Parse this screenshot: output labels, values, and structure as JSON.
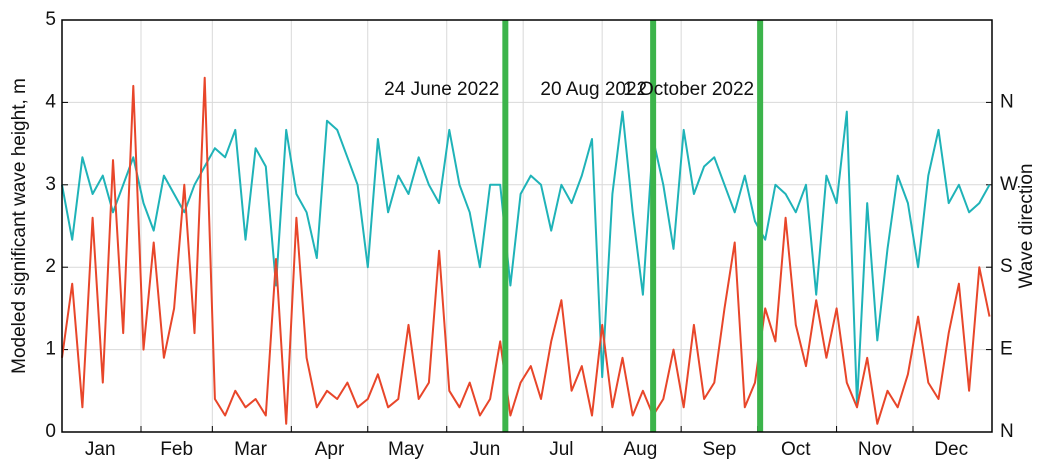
{
  "chart_data": {
    "type": "line",
    "ylabel": "Modeled significant wave height, m",
    "y2label": "Wave direction",
    "xlim": [
      1,
      366
    ],
    "ylim": [
      0,
      5
    ],
    "yticks": [
      0,
      1,
      2,
      3,
      4,
      5
    ],
    "y2lim": [
      0,
      450
    ],
    "y2ticks": [
      {
        "value": 0,
        "label": "N"
      },
      {
        "value": 90,
        "label": "E"
      },
      {
        "value": 180,
        "label": "S"
      },
      {
        "value": 270,
        "label": "W"
      },
      {
        "value": 360,
        "label": "N"
      }
    ],
    "xticks": [
      {
        "value": 16,
        "label": "Jan"
      },
      {
        "value": 46,
        "label": "Feb"
      },
      {
        "value": 75,
        "label": "Mar"
      },
      {
        "value": 106,
        "label": "Apr"
      },
      {
        "value": 136,
        "label": "May"
      },
      {
        "value": 167,
        "label": "Jun"
      },
      {
        "value": 197,
        "label": "Jul"
      },
      {
        "value": 228,
        "label": "Aug"
      },
      {
        "value": 259,
        "label": "Sep"
      },
      {
        "value": 289,
        "label": "Oct"
      },
      {
        "value": 320,
        "label": "Nov"
      },
      {
        "value": 350,
        "label": "Dec"
      }
    ],
    "x_grid": [
      32,
      60,
      91,
      121,
      152,
      182,
      213,
      244,
      274,
      305,
      335
    ],
    "grid": true,
    "annotation_color": "#3cb44b",
    "annotations": [
      {
        "x": 175,
        "label": "24 June 2022"
      },
      {
        "x": 233,
        "label": "20 Aug 2022"
      },
      {
        "x": 275,
        "label": "1 October 2022"
      }
    ],
    "x": [
      1,
      5,
      9,
      13,
      17,
      21,
      25,
      29,
      33,
      37,
      41,
      45,
      49,
      53,
      57,
      61,
      65,
      69,
      73,
      77,
      81,
      85,
      89,
      93,
      97,
      101,
      105,
      109,
      113,
      117,
      121,
      125,
      129,
      133,
      137,
      141,
      145,
      149,
      153,
      157,
      161,
      165,
      169,
      173,
      177,
      181,
      185,
      189,
      193,
      197,
      201,
      205,
      209,
      213,
      217,
      221,
      225,
      229,
      233,
      237,
      241,
      245,
      249,
      253,
      257,
      261,
      265,
      269,
      273,
      277,
      281,
      285,
      289,
      293,
      297,
      301,
      305,
      309,
      313,
      317,
      321,
      325,
      329,
      333,
      337,
      341,
      345,
      349,
      353,
      357,
      361,
      365
    ],
    "series": [
      {
        "name": "Wave direction",
        "color": "#1fb3b8",
        "axis": "y2",
        "values": [
          270,
          210,
          300,
          260,
          280,
          240,
          270,
          300,
          250,
          220,
          280,
          260,
          240,
          270,
          290,
          310,
          300,
          330,
          210,
          310,
          290,
          160,
          330,
          260,
          240,
          190,
          340,
          330,
          300,
          270,
          180,
          320,
          240,
          280,
          260,
          300,
          270,
          250,
          330,
          270,
          240,
          180,
          270,
          270,
          160,
          260,
          280,
          270,
          220,
          270,
          250,
          280,
          320,
          60,
          260,
          350,
          240,
          150,
          320,
          270,
          200,
          330,
          260,
          290,
          300,
          270,
          240,
          280,
          230,
          210,
          270,
          260,
          240,
          270,
          150,
          280,
          250,
          350,
          30,
          250,
          100,
          200,
          280,
          250,
          180,
          280,
          330,
          250,
          270,
          240,
          250,
          270
        ]
      },
      {
        "name": "Significant wave height",
        "color": "#e8462a",
        "values": [
          0.9,
          1.8,
          0.3,
          2.6,
          0.6,
          3.3,
          1.2,
          4.2,
          1.0,
          2.3,
          0.9,
          1.5,
          3.0,
          1.2,
          4.3,
          0.4,
          0.2,
          0.5,
          0.3,
          0.4,
          0.2,
          2.1,
          0.1,
          2.6,
          0.9,
          0.3,
          0.5,
          0.4,
          0.6,
          0.3,
          0.4,
          0.7,
          0.3,
          0.4,
          1.3,
          0.4,
          0.6,
          2.2,
          0.5,
          0.3,
          0.6,
          0.2,
          0.4,
          1.1,
          0.2,
          0.6,
          0.8,
          0.4,
          1.1,
          1.6,
          0.5,
          0.8,
          0.2,
          1.3,
          0.3,
          0.9,
          0.2,
          0.5,
          0.2,
          0.4,
          1.0,
          0.3,
          1.3,
          0.4,
          0.6,
          1.5,
          2.3,
          0.3,
          0.6,
          1.5,
          1.1,
          2.6,
          1.3,
          0.8,
          1.6,
          0.9,
          1.5,
          0.6,
          0.3,
          0.9,
          0.1,
          0.5,
          0.3,
          0.7,
          1.4,
          0.6,
          0.4,
          1.2,
          1.8,
          0.5,
          2.0,
          1.4
        ]
      }
    ]
  }
}
